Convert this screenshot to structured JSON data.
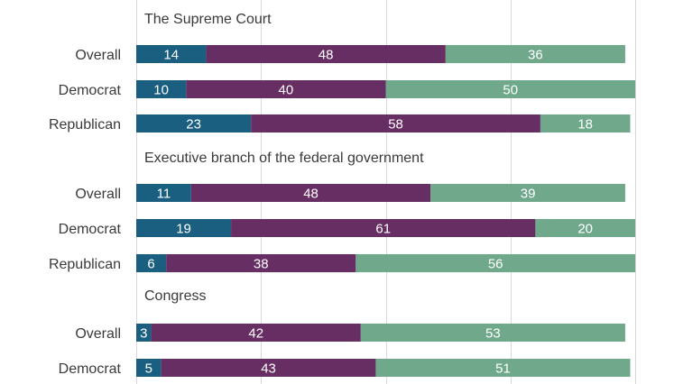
{
  "chart_data": {
    "type": "bar",
    "orientation": "horizontal",
    "stacked": true,
    "colors": [
      "#1b5f80",
      "#672e64",
      "#6fa88b"
    ],
    "groups": [
      {
        "title": "The Supreme Court",
        "rows": [
          {
            "label": "Overall",
            "values": [
              14,
              48,
              36
            ]
          },
          {
            "label": "Democrat",
            "values": [
              10,
              40,
              50
            ]
          },
          {
            "label": "Republican",
            "values": [
              23,
              58,
              18
            ]
          }
        ]
      },
      {
        "title": "Executive branch of the federal government",
        "rows": [
          {
            "label": "Overall",
            "values": [
              11,
              48,
              39
            ]
          },
          {
            "label": "Democrat",
            "values": [
              19,
              61,
              20
            ]
          },
          {
            "label": "Republican",
            "values": [
              6,
              38,
              56
            ]
          }
        ]
      },
      {
        "title": "Congress",
        "rows": [
          {
            "label": "Overall",
            "values": [
              3,
              42,
              53
            ]
          },
          {
            "label": "Democrat",
            "values": [
              5,
              43,
              51
            ]
          }
        ]
      }
    ],
    "xlim": [
      0,
      100
    ],
    "grid": true
  }
}
